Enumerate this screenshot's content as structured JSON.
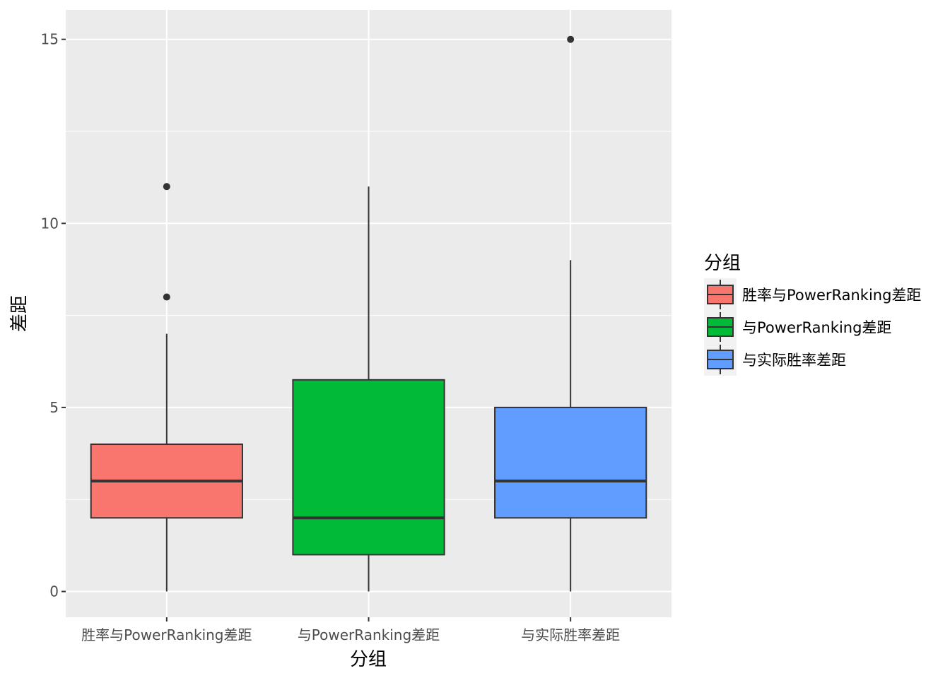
{
  "chart_data": {
    "type": "boxplot",
    "xlabel": "分组",
    "ylabel": "差距",
    "ylim": [
      -0.7,
      15.8
    ],
    "yticks": [
      0,
      5,
      10,
      15
    ],
    "grid": true,
    "legend_position": "right",
    "legend_title": "分组",
    "categories": [
      "胜率与PowerRanking差距",
      "与PowerRanking差距",
      "与实际胜率差距"
    ],
    "series": [
      {
        "name": "胜率与PowerRanking差距",
        "color": "#F8766D",
        "min": 0,
        "q1": 2,
        "median": 3,
        "q3": 4,
        "max": 7,
        "outliers": [
          8,
          11
        ]
      },
      {
        "name": "与PowerRanking差距",
        "color": "#00BA38",
        "min": 0,
        "q1": 1,
        "median": 2,
        "q3": 5.75,
        "max": 11,
        "outliers": []
      },
      {
        "name": "与实际胜率差距",
        "color": "#619CFF",
        "min": 0,
        "q1": 2,
        "median": 3,
        "q3": 5,
        "max": 9,
        "outliers": [
          15
        ]
      }
    ]
  }
}
